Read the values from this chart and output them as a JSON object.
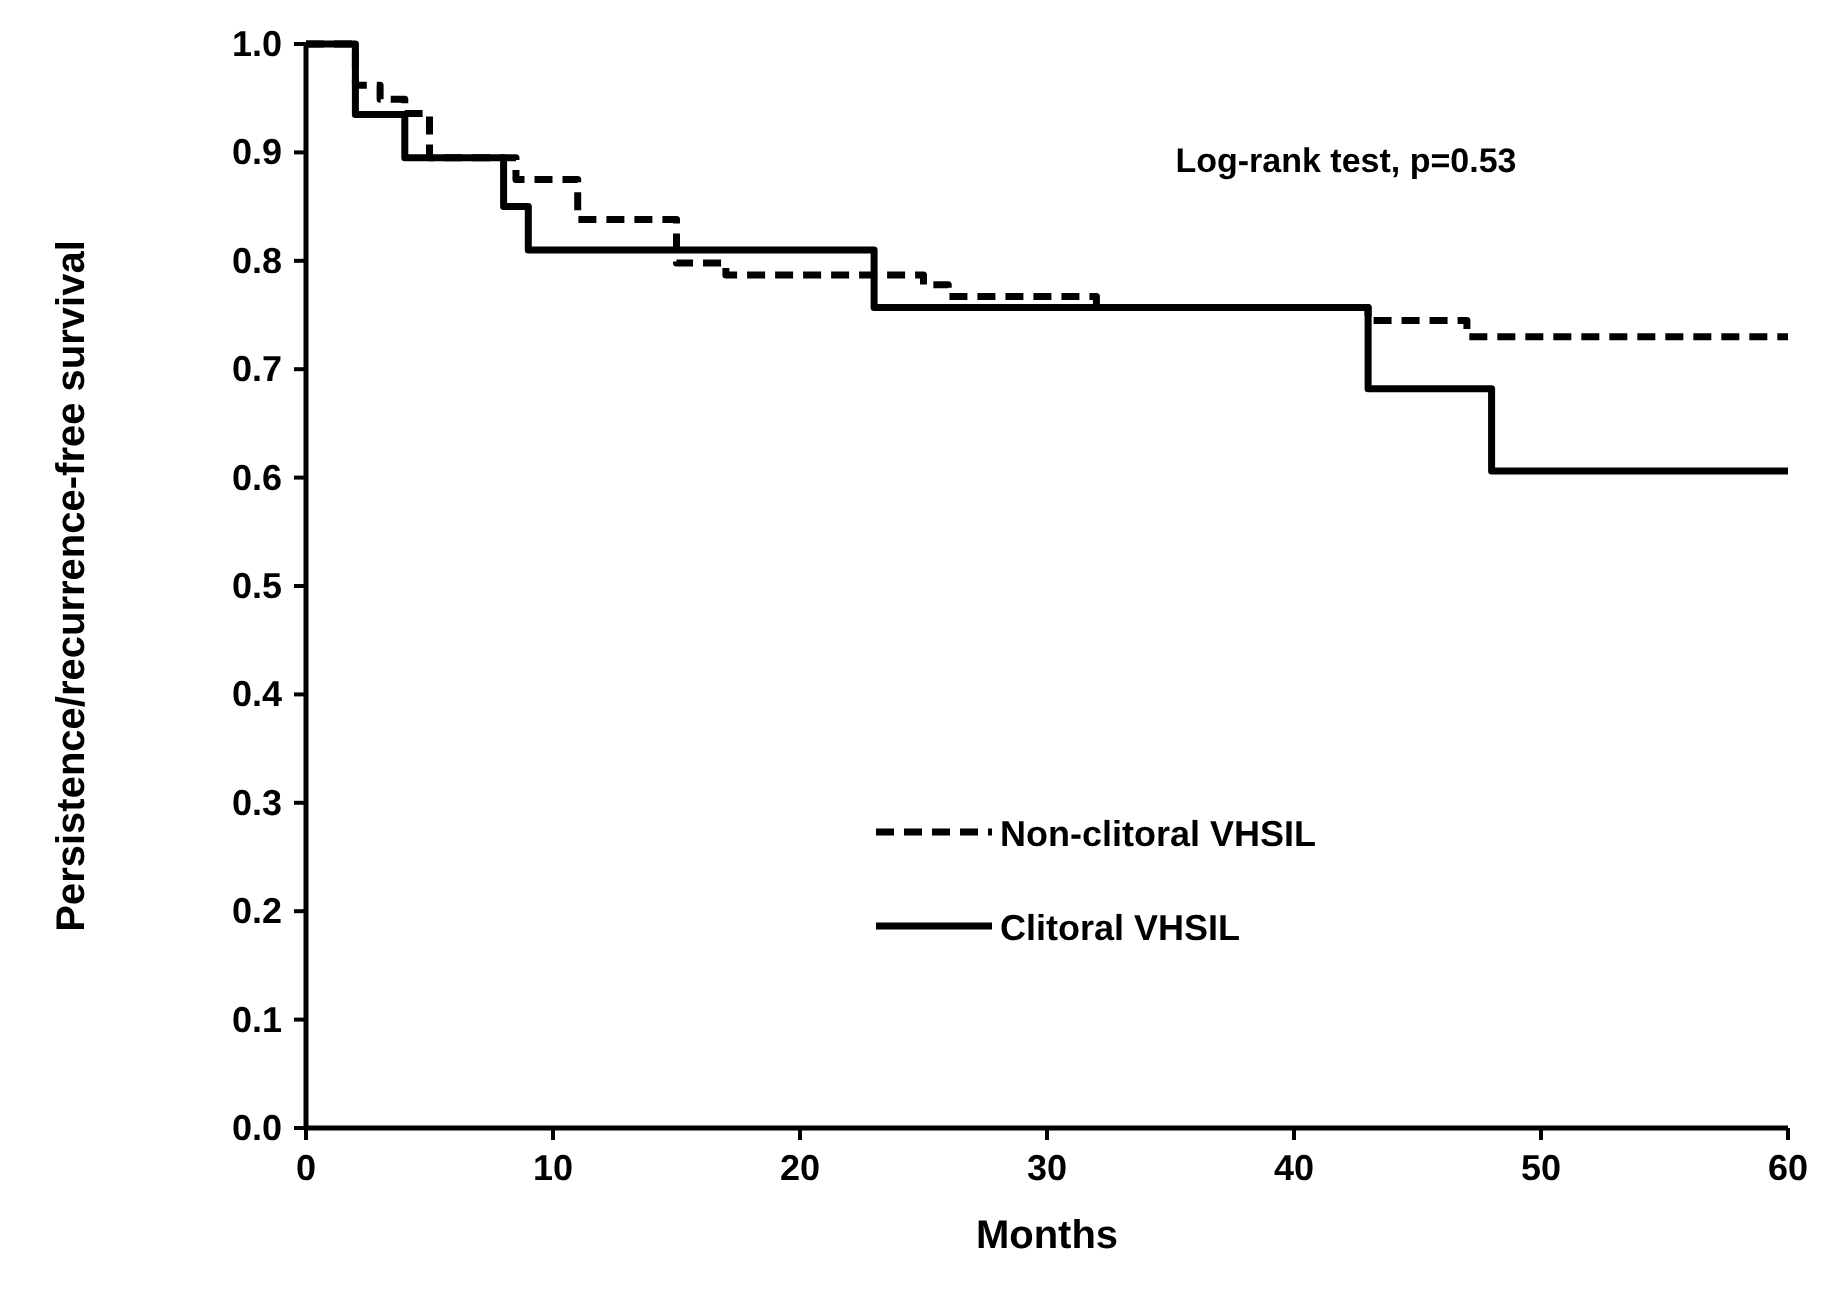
{
  "chart_data": {
    "type": "step",
    "xlabel": "Months",
    "ylabel": "Persistence/recurrence-free survival",
    "annotations": [
      "Log-rank test, p=0.53"
    ],
    "xlim": [
      0,
      60
    ],
    "xticks": [
      0,
      10,
      20,
      30,
      40,
      50,
      60
    ],
    "ylim": [
      0,
      1
    ],
    "yticks": [
      {
        "value": 0,
        "label": "0.0"
      },
      {
        "value": 0.1,
        "label": "0.1"
      },
      {
        "value": 0.2,
        "label": "0.2"
      },
      {
        "value": 0.3,
        "label": "0.3"
      },
      {
        "value": 0.4,
        "label": "0.4"
      },
      {
        "value": 0.5,
        "label": "0.5"
      },
      {
        "value": 0.6,
        "label": "0.6"
      },
      {
        "value": 0.7,
        "label": "0.7"
      },
      {
        "value": 0.8,
        "label": "0.8"
      },
      {
        "value": 0.9,
        "label": "0.9"
      },
      {
        "value": 1,
        "label": "1.0"
      }
    ],
    "grid": false,
    "legend": "bottom",
    "marker": "none",
    "series": [
      {
        "name": "Non-clitoral VHSIL",
        "color": "#000000",
        "line_style": "dashed",
        "x": [
          0,
          2,
          3,
          4,
          5,
          8.5,
          11,
          15,
          17,
          25,
          26,
          32,
          43,
          47,
          60
        ],
        "values": [
          1,
          0.962,
          0.949,
          0.936,
          0.895,
          0.875,
          0.838,
          0.798,
          0.787,
          0.778,
          0.767,
          0.757,
          0.745,
          0.73,
          0.73
        ]
      },
      {
        "name": "Clitoral VHSIL",
        "color": "#000000",
        "line_style": "solid",
        "x": [
          0,
          2,
          4,
          8,
          9,
          23,
          43,
          48,
          60
        ],
        "values": [
          1,
          0.935,
          0.895,
          0.85,
          0.81,
          0.757,
          0.682,
          0.606,
          0.606
        ]
      }
    ]
  }
}
